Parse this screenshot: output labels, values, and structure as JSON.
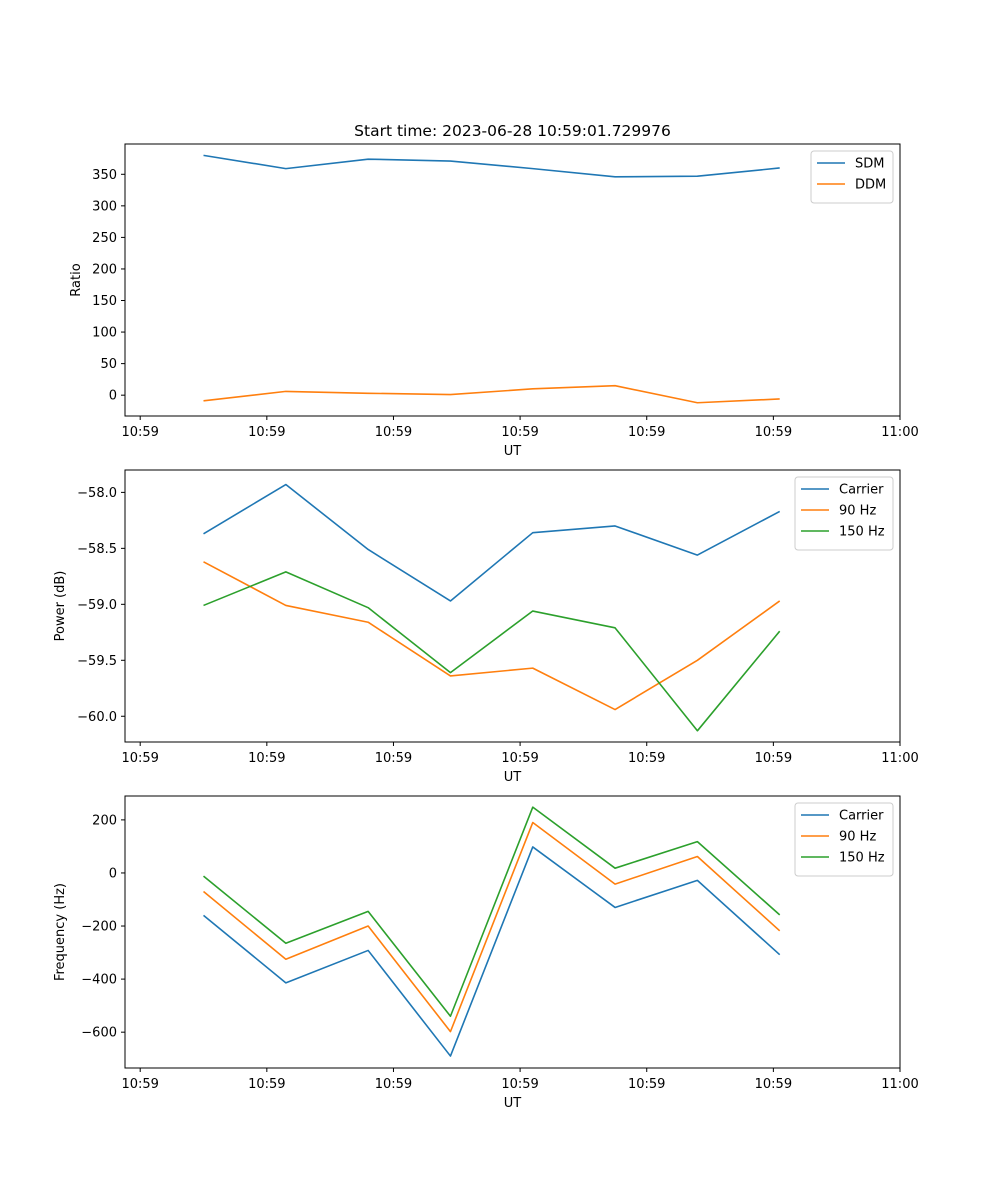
{
  "figure": {
    "title": "Start time: 2023-06-28 10:59:01.729976"
  },
  "chart_data": [
    {
      "type": "line",
      "title": "Start time: 2023-06-28 10:59:01.729976",
      "xlabel": "UT",
      "ylabel": "Ratio",
      "x_tick_labels": [
        "10:59",
        "10:59",
        "10:59",
        "10:59",
        "10:59",
        "10:59",
        "11:00"
      ],
      "x_ticks": [
        0,
        1,
        2,
        3,
        4,
        5,
        6
      ],
      "xlim": [
        -0.12,
        6.0
      ],
      "y_ticks": [
        0,
        50,
        100,
        150,
        200,
        250,
        300,
        350
      ],
      "ylim": [
        -33,
        398
      ],
      "x": [
        0.5,
        1.15,
        1.8,
        2.45,
        3.1,
        3.75,
        4.4,
        5.05
      ],
      "series": [
        {
          "name": "SDM",
          "color": "#1f77b4",
          "values": [
            380,
            359,
            374,
            371,
            359,
            346,
            347,
            360
          ]
        },
        {
          "name": "DDM",
          "color": "#ff7f0e",
          "values": [
            -9,
            6,
            3,
            1,
            10,
            15,
            -12,
            -6
          ]
        }
      ],
      "legend_position": "top-right",
      "grid": false
    },
    {
      "type": "line",
      "title": "",
      "xlabel": "UT",
      "ylabel": "Power (dB)",
      "x_tick_labels": [
        "10:59",
        "10:59",
        "10:59",
        "10:59",
        "10:59",
        "10:59",
        "11:00"
      ],
      "x_ticks": [
        0,
        1,
        2,
        3,
        4,
        5,
        6
      ],
      "xlim": [
        -0.12,
        6.0
      ],
      "y_ticks": [
        -60.0,
        -59.5,
        -59.0,
        -58.5,
        -58.0
      ],
      "y_tick_labels": [
        "−60.0",
        "−59.5",
        "−59.0",
        "−58.5",
        "−58.0"
      ],
      "ylim": [
        -60.23,
        -57.8
      ],
      "x": [
        0.5,
        1.15,
        1.8,
        2.45,
        3.1,
        3.75,
        4.4,
        5.05
      ],
      "series": [
        {
          "name": "Carrier",
          "color": "#1f77b4",
          "values": [
            -58.37,
            -57.93,
            -58.51,
            -58.97,
            -58.36,
            -58.3,
            -58.56,
            -58.17
          ]
        },
        {
          "name": "90 Hz",
          "color": "#ff7f0e",
          "values": [
            -58.62,
            -59.01,
            -59.16,
            -59.64,
            -59.57,
            -59.94,
            -59.5,
            -58.97
          ]
        },
        {
          "name": "150 Hz",
          "color": "#2ca02c",
          "values": [
            -59.01,
            -58.71,
            -59.03,
            -59.61,
            -59.06,
            -59.21,
            -60.13,
            -59.24
          ]
        }
      ],
      "legend_position": "top-right",
      "grid": false
    },
    {
      "type": "line",
      "title": "",
      "xlabel": "UT",
      "ylabel": "Frequency (Hz)",
      "x_tick_labels": [
        "10:59",
        "10:59",
        "10:59",
        "10:59",
        "10:59",
        "10:59",
        "11:00"
      ],
      "x_ticks": [
        0,
        1,
        2,
        3,
        4,
        5,
        6
      ],
      "xlim": [
        -0.12,
        6.0
      ],
      "y_ticks": [
        -600,
        -400,
        -200,
        0,
        200
      ],
      "y_tick_labels": [
        "−600",
        "−400",
        "−200",
        "0",
        "200"
      ],
      "ylim": [
        -735,
        290
      ],
      "x": [
        0.5,
        1.15,
        1.8,
        2.45,
        3.1,
        3.75,
        4.4,
        5.05
      ],
      "series": [
        {
          "name": "Carrier",
          "color": "#1f77b4",
          "values": [
            -160,
            -414,
            -292,
            -690,
            98,
            -130,
            -28,
            -308
          ]
        },
        {
          "name": "90 Hz",
          "color": "#ff7f0e",
          "values": [
            -70,
            -325,
            -200,
            -598,
            190,
            -42,
            62,
            -218
          ]
        },
        {
          "name": "150 Hz",
          "color": "#2ca02c",
          "values": [
            -12,
            -265,
            -145,
            -540,
            248,
            18,
            118,
            -158
          ]
        }
      ],
      "legend_position": "top-right",
      "grid": false
    }
  ]
}
